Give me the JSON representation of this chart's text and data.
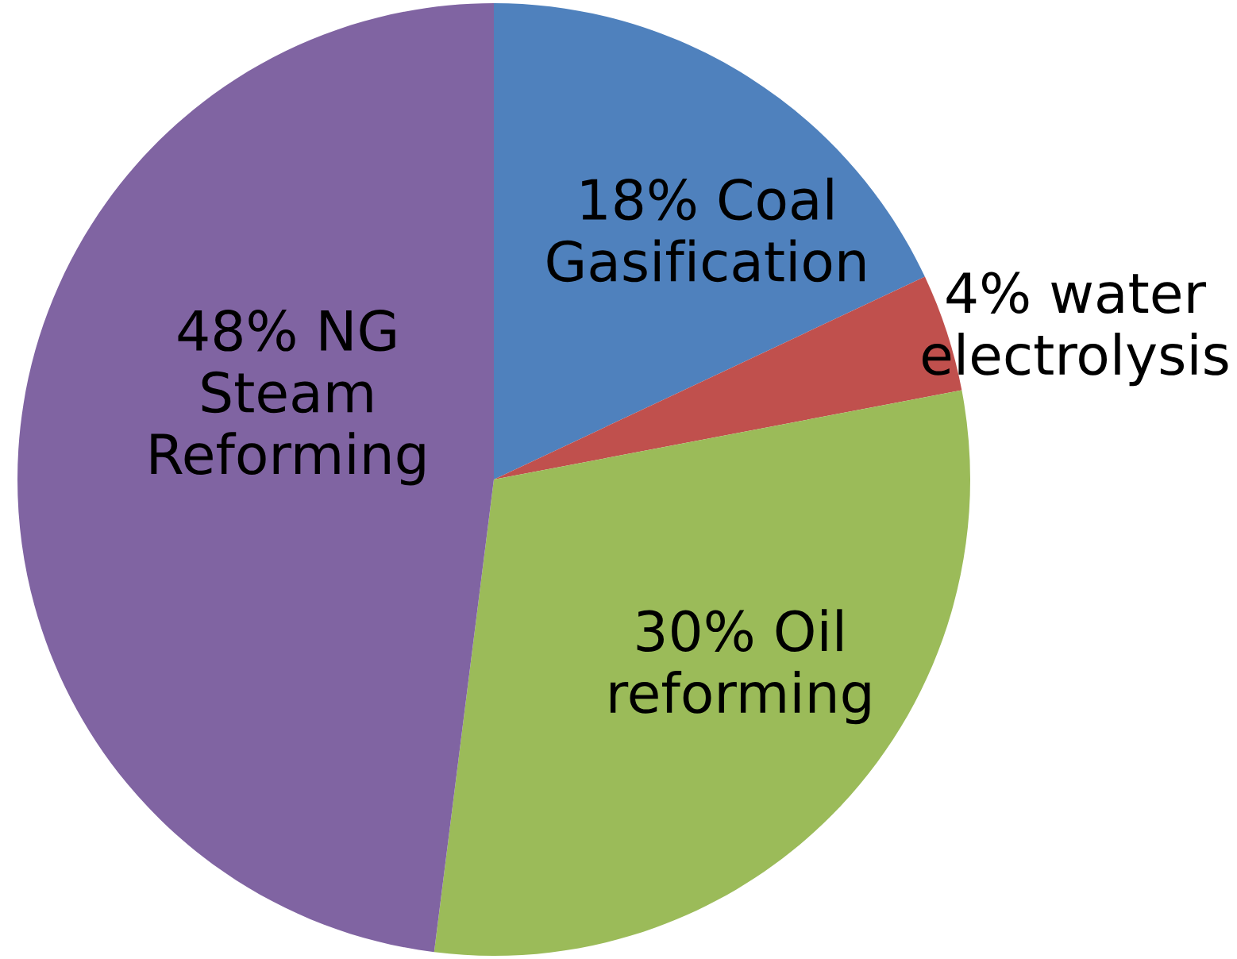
{
  "chart_data": {
    "type": "pie",
    "categories": [
      "Coal\nGasification",
      "water\nelectrolysis",
      "Oil\nreforming",
      "NG\nSteam\nReforming"
    ],
    "values": [
      18,
      4,
      30,
      48
    ],
    "value_labels": [
      "18%",
      "4%",
      "30%",
      "48%"
    ],
    "colors": [
      "#4f81bd",
      "#c0504d",
      "#9bbb59",
      "#8064a2"
    ],
    "legend": false
  }
}
